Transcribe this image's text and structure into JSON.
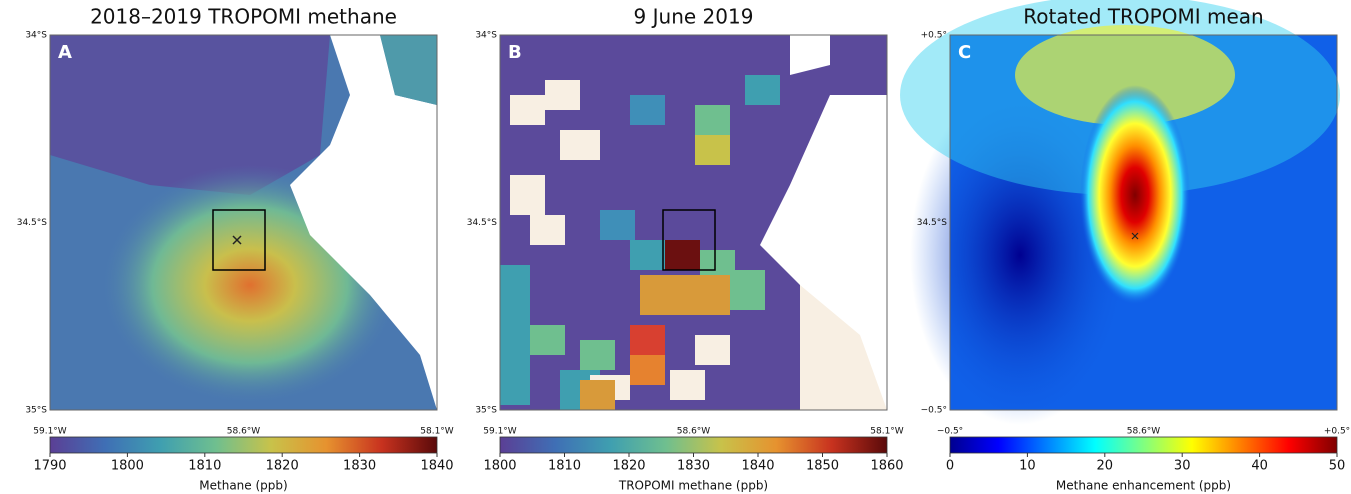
{
  "panels": [
    {
      "letter": "A",
      "title": "2018–2019 TROPOMI methane",
      "lat_labels": [
        "34°S",
        "34.5°S",
        "35°S"
      ],
      "lon_labels": [
        "59.1°W",
        "58.6°W",
        "58.1°W"
      ],
      "colorbar": {
        "label": "Methane (ppb)",
        "lim": [
          1790,
          1840
        ],
        "ticks": [
          1790,
          1800,
          1810,
          1820,
          1830,
          1840
        ],
        "colors": [
          "#5b3f95",
          "#3f6fb5",
          "#3f9fb0",
          "#6fbf8f",
          "#c8c24a",
          "#e6922f",
          "#c8321f",
          "#5a0a0a"
        ]
      }
    },
    {
      "letter": "B",
      "title": "9 June 2019",
      "lat_labels": [
        "34°S",
        "34.5°S",
        "35°S"
      ],
      "lon_labels": [
        "59.1°W",
        "58.6°W",
        "58.1°W"
      ],
      "colorbar": {
        "label": "TROPOMI methane (ppb)",
        "lim": [
          1800,
          1860
        ],
        "ticks": [
          1800,
          1810,
          1820,
          1830,
          1840,
          1850,
          1860
        ],
        "colors": [
          "#5b3f95",
          "#3f6fb5",
          "#3f9fb0",
          "#6fbf8f",
          "#c8c24a",
          "#e6922f",
          "#c8321f",
          "#5a0a0a"
        ]
      }
    },
    {
      "letter": "C",
      "title": "Rotated TROPOMI mean",
      "lat_labels": [
        "+0.5°",
        "34.5°S",
        "−0.5°"
      ],
      "lon_labels": [
        "−0.5°",
        "58.6°W",
        "+0.5°"
      ],
      "colorbar": {
        "label": "Methane enhancement (ppb)",
        "lim": [
          0,
          50
        ],
        "ticks": [
          0,
          10,
          20,
          30,
          40,
          50
        ],
        "colors": [
          "#00008f",
          "#0000ff",
          "#0080ff",
          "#00ffff",
          "#80ff80",
          "#ffff00",
          "#ff8000",
          "#ff0000",
          "#800000"
        ]
      }
    }
  ]
}
